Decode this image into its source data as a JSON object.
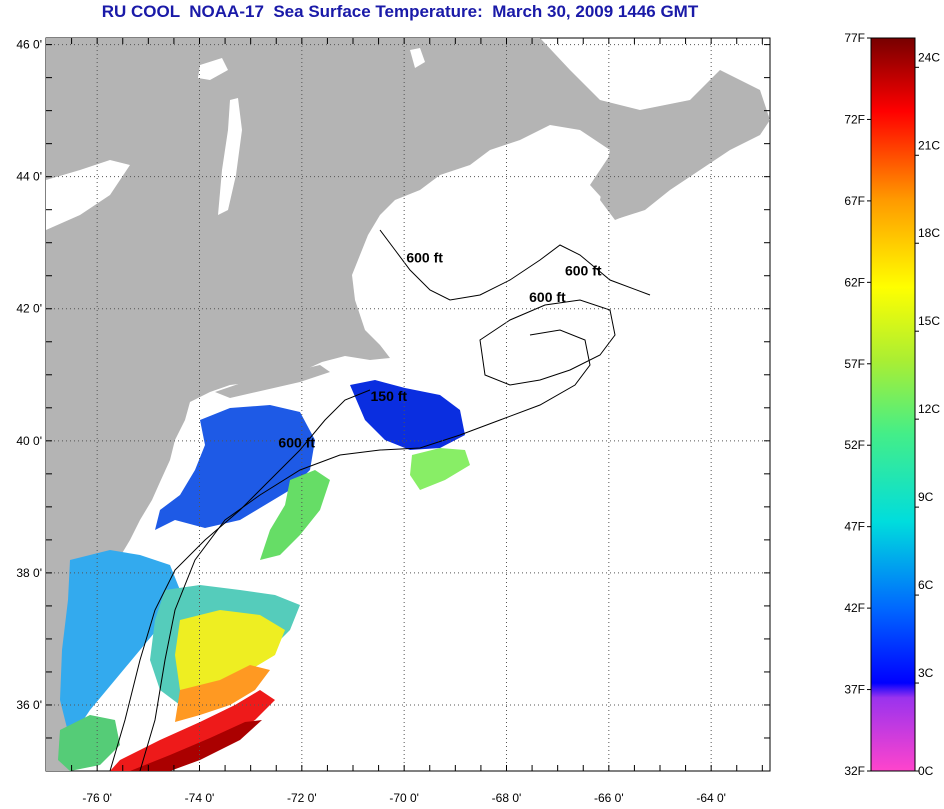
{
  "title": "RU COOL  NOAA-17  Sea Surface Temperature:  March 30, 2009 1446 GMT",
  "lat_ticks": [
    {
      "label": "46 0'",
      "value": 46
    },
    {
      "label": "44 0'",
      "value": 44
    },
    {
      "label": "42 0'",
      "value": 42
    },
    {
      "label": "40 0'",
      "value": 40
    },
    {
      "label": "38 0'",
      "value": 38
    },
    {
      "label": "36 0'",
      "value": 36
    }
  ],
  "lon_ticks": [
    {
      "label": "-76 0'",
      "value": -76
    },
    {
      "label": "-74 0'",
      "value": -74
    },
    {
      "label": "-72 0'",
      "value": -72
    },
    {
      "label": "-70 0'",
      "value": -70
    },
    {
      "label": "-68 0'",
      "value": -68
    },
    {
      "label": "-66 0'",
      "value": -66
    },
    {
      "label": "-64 0'",
      "value": -64
    }
  ],
  "contour_labels": [
    {
      "text": "600 ft",
      "lon": -69.6,
      "lat": 42.7
    },
    {
      "text": "600 ft",
      "lon": -66.5,
      "lat": 42.5
    },
    {
      "text": "600 ft",
      "lon": -67.2,
      "lat": 42.1
    },
    {
      "text": "150 ft",
      "lon": -70.3,
      "lat": 40.6
    },
    {
      "text": "600 ft",
      "lon": -72.1,
      "lat": 39.9
    }
  ],
  "colorbar": {
    "min_f": 32,
    "max_f": 77,
    "fahrenheit_labels": [
      "77F",
      "72F",
      "67F",
      "62F",
      "57F",
      "52F",
      "47F",
      "42F",
      "37F",
      "32F"
    ],
    "celsius_labels": [
      {
        "label": "24C",
        "value": 24
      },
      {
        "label": "21C",
        "value": 21
      },
      {
        "label": "18C",
        "value": 18
      },
      {
        "label": "15C",
        "value": 15
      },
      {
        "label": "12C",
        "value": 12
      },
      {
        "label": "9C",
        "value": 9
      },
      {
        "label": "6C",
        "value": 6
      },
      {
        "label": "3C",
        "value": 3
      },
      {
        "label": "0C",
        "value": 0
      }
    ]
  },
  "colors": {
    "land": "#b4b4b4",
    "water_nodata": "#ffffff",
    "title": "#1a1aa8"
  }
}
